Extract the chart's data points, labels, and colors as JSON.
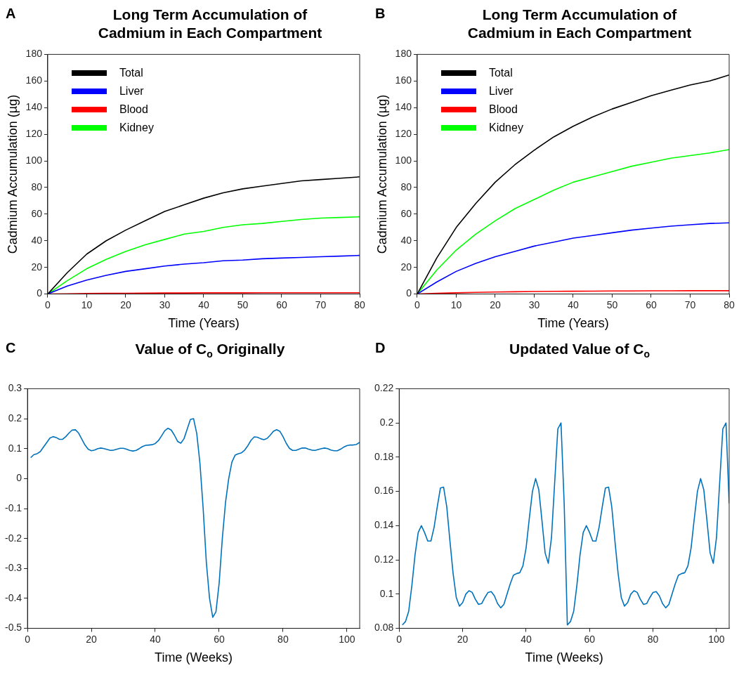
{
  "chart_data": [
    {
      "type": "line",
      "title": "Long Term Accumulation of Cadmium in Each Compartment",
      "annotations": [
        "A"
      ],
      "xlabel": "Time (Years)",
      "ylabel": "Cadmium Accumulation (µg)",
      "x": [
        0,
        5,
        10,
        15,
        20,
        25,
        30,
        35,
        40,
        45,
        50,
        55,
        60,
        65,
        70,
        75,
        80
      ],
      "xlim": [
        0,
        80
      ],
      "xticks": [
        0,
        10,
        20,
        30,
        40,
        50,
        60,
        70,
        80
      ],
      "ylim": [
        0,
        180
      ],
      "yticks": [
        0,
        20,
        40,
        60,
        80,
        100,
        120,
        140,
        160,
        180
      ],
      "legend": "top left",
      "grid": false,
      "series": [
        {
          "name": "Total",
          "color": "#000000",
          "values": [
            0,
            16,
            30,
            40,
            48,
            55,
            62,
            67,
            72,
            76,
            79,
            81,
            83,
            85,
            86,
            87,
            88
          ]
        },
        {
          "name": "Liver",
          "color": "#0000ff",
          "values": [
            0,
            6,
            10.5,
            14,
            17,
            19,
            21,
            22.5,
            23.5,
            25,
            25.5,
            26.5,
            27,
            27.5,
            28,
            28.5,
            29
          ]
        },
        {
          "name": "Blood",
          "color": "#ff0000",
          "values": [
            0,
            0.2,
            0.4,
            0.5,
            0.6,
            0.7,
            0.8,
            0.8,
            0.9,
            0.9,
            0.9,
            1,
            1,
            1,
            1,
            1,
            1
          ]
        },
        {
          "name": "Kidney",
          "color": "#00ff00",
          "values": [
            0,
            10,
            19,
            26,
            32,
            37,
            41,
            45,
            47,
            50,
            52,
            53,
            54.5,
            56,
            57,
            57.5,
            58
          ]
        }
      ]
    },
    {
      "type": "line",
      "title": "Long Term Accumulation of Cadmium in Each Compartment",
      "annotations": [
        "B"
      ],
      "xlabel": "Time (Years)",
      "ylabel": "Cadmium Accumulation (µg)",
      "x": [
        0,
        5,
        10,
        15,
        20,
        25,
        30,
        35,
        40,
        45,
        50,
        55,
        60,
        65,
        70,
        75,
        80
      ],
      "xlim": [
        0,
        80
      ],
      "xticks": [
        0,
        10,
        20,
        30,
        40,
        50,
        60,
        70,
        80
      ],
      "ylim": [
        0,
        180
      ],
      "yticks": [
        0,
        20,
        40,
        60,
        80,
        100,
        120,
        140,
        160,
        180
      ],
      "legend": "top left",
      "grid": false,
      "series": [
        {
          "name": "Total",
          "color": "#000000",
          "values": [
            0,
            27,
            50,
            68,
            84,
            97,
            108,
            118,
            126,
            133,
            139,
            144,
            149,
            153,
            157,
            160,
            164.5
          ]
        },
        {
          "name": "Liver",
          "color": "#0000ff",
          "values": [
            0,
            9,
            17,
            23,
            28,
            32,
            36,
            39,
            42,
            44,
            46,
            48,
            49.5,
            51,
            52,
            53,
            53.5
          ]
        },
        {
          "name": "Blood",
          "color": "#ff0000",
          "values": [
            0,
            0.5,
            0.9,
            1.2,
            1.5,
            1.7,
            1.9,
            2,
            2.1,
            2.2,
            2.3,
            2.3,
            2.4,
            2.4,
            2.5,
            2.5,
            2.5
          ]
        },
        {
          "name": "Kidney",
          "color": "#00ff00",
          "values": [
            0,
            18,
            33,
            45,
            55,
            64,
            71,
            78,
            84,
            88,
            92,
            96,
            99,
            102,
            104,
            106,
            108.5
          ]
        }
      ]
    },
    {
      "type": "line",
      "title": "Value of C$_{o}$ Originally",
      "annotations": [
        "C"
      ],
      "xlabel": "Time (Weeks)",
      "x": [
        1,
        2,
        3,
        4,
        5,
        6,
        7,
        8,
        9,
        10,
        11,
        12,
        13,
        14,
        15,
        16,
        17,
        18,
        19,
        20,
        21,
        22,
        23,
        24,
        25,
        26,
        27,
        28,
        29,
        30,
        31,
        32,
        33,
        34,
        35,
        36,
        37,
        38,
        39,
        40,
        41,
        42,
        43,
        44,
        45,
        46,
        47,
        48,
        49,
        50,
        51,
        52,
        53,
        54,
        55,
        56,
        57,
        58,
        59,
        60,
        61,
        62,
        63,
        64,
        65,
        66,
        67,
        68,
        69,
        70,
        71,
        72,
        73,
        74,
        75,
        76,
        77,
        78,
        79,
        80,
        81,
        82,
        83,
        84,
        85,
        86,
        87,
        88,
        89,
        90,
        91,
        92,
        93,
        94,
        95,
        96,
        97,
        98,
        99,
        100,
        101,
        102,
        103,
        104
      ],
      "xlim": [
        0,
        104
      ],
      "xticks": [
        0,
        20,
        40,
        60,
        80,
        100
      ],
      "ylim": [
        -0.5,
        0.3
      ],
      "yticks": [
        -0.5,
        -0.4,
        -0.3,
        -0.2,
        -0.1,
        0,
        0.1,
        0.2,
        0.3
      ],
      "grid": false,
      "series": [
        {
          "color": "#0072bd",
          "values": [
            0.07,
            0.08,
            0.083,
            0.09,
            0.105,
            0.12,
            0.135,
            0.14,
            0.137,
            0.131,
            0.131,
            0.14,
            0.152,
            0.162,
            0.163,
            0.152,
            0.132,
            0.112,
            0.098,
            0.093,
            0.095,
            0.1,
            0.102,
            0.1,
            0.097,
            0.094,
            0.095,
            0.098,
            0.101,
            0.101,
            0.098,
            0.094,
            0.092,
            0.094,
            0.1,
            0.107,
            0.111,
            0.112,
            0.113,
            0.117,
            0.127,
            0.143,
            0.16,
            0.168,
            0.162,
            0.145,
            0.124,
            0.118,
            0.133,
            0.165,
            0.197,
            0.2,
            0.15,
            0.05,
            -0.1,
            -0.28,
            -0.4,
            -0.463,
            -0.445,
            -0.35,
            -0.2,
            -0.08,
            0,
            0.055,
            0.078,
            0.083,
            0.086,
            0.095,
            0.11,
            0.128,
            0.139,
            0.138,
            0.133,
            0.13,
            0.134,
            0.145,
            0.158,
            0.163,
            0.158,
            0.14,
            0.118,
            0.101,
            0.094,
            0.094,
            0.098,
            0.102,
            0.102,
            0.098,
            0.095,
            0.094,
            0.097,
            0.1,
            0.102,
            0.1,
            0.095,
            0.093,
            0.093,
            0.098,
            0.105,
            0.11,
            0.112,
            0.112,
            0.114,
            0.121
          ]
        }
      ]
    },
    {
      "type": "line",
      "title": "Updated Value of C$_{o}$",
      "annotations": [
        "D"
      ],
      "xlabel": "Time (Weeks)",
      "x": [
        1,
        2,
        3,
        4,
        5,
        6,
        7,
        8,
        9,
        10,
        11,
        12,
        13,
        14,
        15,
        16,
        17,
        18,
        19,
        20,
        21,
        22,
        23,
        24,
        25,
        26,
        27,
        28,
        29,
        30,
        31,
        32,
        33,
        34,
        35,
        36,
        37,
        38,
        39,
        40,
        41,
        42,
        43,
        44,
        45,
        46,
        47,
        48,
        49,
        50,
        51,
        52,
        53,
        54,
        55,
        56,
        57,
        58,
        59,
        60,
        61,
        62,
        63,
        64,
        65,
        66,
        67,
        68,
        69,
        70,
        71,
        72,
        73,
        74,
        75,
        76,
        77,
        78,
        79,
        80,
        81,
        82,
        83,
        84,
        85,
        86,
        87,
        88,
        89,
        90,
        91,
        92,
        93,
        94,
        95,
        96,
        97,
        98,
        99,
        100,
        101,
        102,
        103,
        104
      ],
      "xlim": [
        0,
        104
      ],
      "xticks": [
        0,
        20,
        40,
        60,
        80,
        100
      ],
      "ylim": [
        0.08,
        0.22
      ],
      "yticks": [
        0.08,
        0.1,
        0.12,
        0.14,
        0.16,
        0.18,
        0.2,
        0.22
      ],
      "grid": false,
      "series": [
        {
          "color": "#0072bd",
          "values": [
            0.082,
            0.084,
            0.09,
            0.105,
            0.123,
            0.136,
            0.14,
            0.136,
            0.131,
            0.131,
            0.139,
            0.151,
            0.162,
            0.1625,
            0.151,
            0.131,
            0.112,
            0.098,
            0.093,
            0.095,
            0.1,
            0.102,
            0.101,
            0.097,
            0.094,
            0.0945,
            0.098,
            0.101,
            0.1015,
            0.099,
            0.0945,
            0.092,
            0.094,
            0.1,
            0.106,
            0.111,
            0.112,
            0.1125,
            0.1165,
            0.127,
            0.144,
            0.16,
            0.1675,
            0.161,
            0.143,
            0.124,
            0.118,
            0.133,
            0.165,
            0.1965,
            0.2,
            0.153,
            0.082,
            0.084,
            0.09,
            0.105,
            0.123,
            0.136,
            0.14,
            0.136,
            0.131,
            0.131,
            0.139,
            0.151,
            0.162,
            0.1625,
            0.151,
            0.131,
            0.112,
            0.098,
            0.093,
            0.095,
            0.1,
            0.102,
            0.101,
            0.097,
            0.094,
            0.0945,
            0.098,
            0.101,
            0.1015,
            0.099,
            0.0945,
            0.092,
            0.094,
            0.1,
            0.106,
            0.111,
            0.112,
            0.1125,
            0.1165,
            0.127,
            0.144,
            0.16,
            0.1675,
            0.161,
            0.143,
            0.124,
            0.118,
            0.133,
            0.165,
            0.1965,
            0.2,
            0.153
          ]
        }
      ]
    }
  ]
}
